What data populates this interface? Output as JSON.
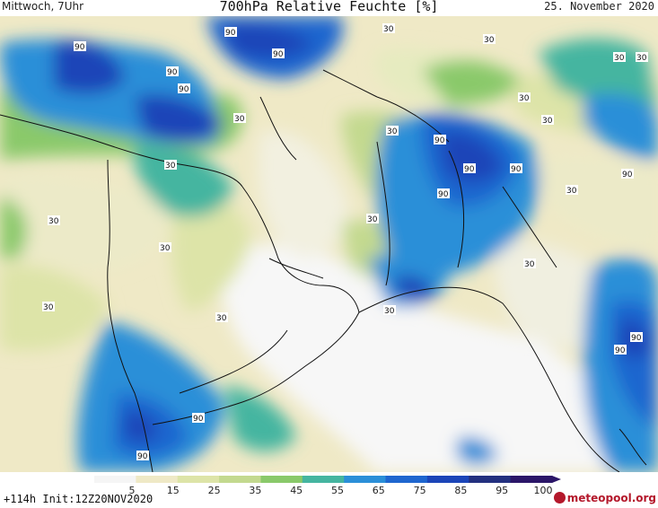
{
  "header": {
    "day_time": "Mittwoch, 7Uhr",
    "title": "700hPa Relative Feuchte [%]",
    "date": "25. November 2020"
  },
  "map": {
    "contour_labels": [
      "90",
      "90",
      "90",
      "90",
      "90",
      "30",
      "30",
      "30",
      "30",
      "30",
      "30",
      "30",
      "30",
      "30",
      "30",
      "30",
      "30",
      "30",
      "30",
      "90",
      "90",
      "90",
      "90",
      "90",
      "30",
      "30",
      "90",
      "90",
      "30",
      "90",
      "90"
    ]
  },
  "colorbar": {
    "ticks": [
      "5",
      "15",
      "25",
      "35",
      "45",
      "55",
      "65",
      "75",
      "85",
      "95",
      "100"
    ],
    "colors": [
      "#f5f5f5",
      "#efe9c6",
      "#dde4a8",
      "#c3d98f",
      "#8ac96a",
      "#45b5a0",
      "#2b8fd8",
      "#1f66cf",
      "#1c45b8",
      "#23307f",
      "#2b1668"
    ]
  },
  "footer": {
    "run_info": "+114h  Init:12Z20NOV2020",
    "brand": "meteopool.org"
  }
}
